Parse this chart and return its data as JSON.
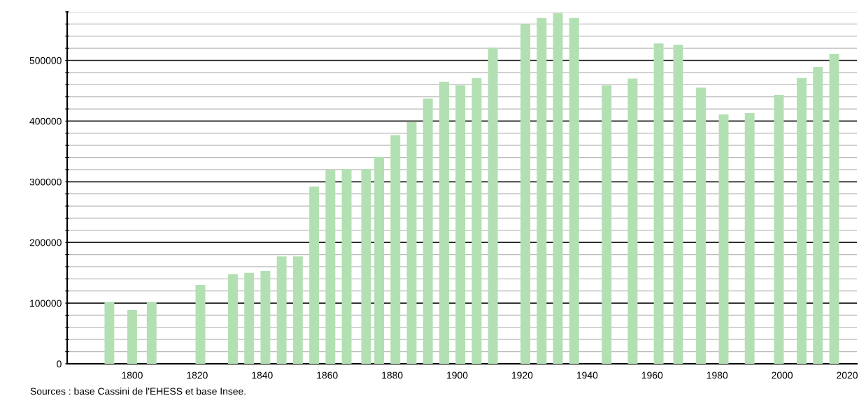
{
  "chart_data": {
    "type": "bar",
    "color": "#b3e0b3",
    "x": [
      1793,
      1800,
      1806,
      1821,
      1831,
      1836,
      1841,
      1846,
      1851,
      1856,
      1861,
      1866,
      1872,
      1876,
      1881,
      1886,
      1891,
      1896,
      1901,
      1906,
      1911,
      1921,
      1926,
      1931,
      1936,
      1946,
      1954,
      1962,
      1968,
      1975,
      1982,
      1990,
      1999,
      2006,
      2011,
      2016
    ],
    "values": [
      102000,
      88700,
      102000,
      130000,
      148000,
      150000,
      153000,
      177000,
      177000,
      292000,
      319500,
      321000,
      321000,
      341000,
      377000,
      398600,
      437000,
      465000,
      459000,
      471000,
      521000,
      560000,
      570000,
      578000,
      570000,
      459000,
      470000,
      528000,
      526000,
      455000,
      411000,
      413000,
      443000,
      471000,
      489000,
      511000
    ],
    "xlim": [
      1780,
      2023
    ],
    "xticks": [
      1800,
      1820,
      1840,
      1860,
      1880,
      1900,
      1920,
      1940,
      1960,
      1980,
      2000,
      2020
    ],
    "ylim": [
      0,
      580000
    ],
    "yticks": [
      0,
      {
        "value": 20000,
        "label": null
      },
      {
        "value": 40000,
        "label": null
      },
      {
        "value": 60000,
        "label": null
      },
      {
        "value": 80000,
        "label": null
      },
      100000,
      {
        "value": 120000,
        "label": null
      },
      {
        "value": 140000,
        "label": null
      },
      {
        "value": 160000,
        "label": null
      },
      {
        "value": 180000,
        "label": null
      },
      200000,
      {
        "value": 220000,
        "label": null
      },
      {
        "value": 240000,
        "label": null
      },
      {
        "value": 260000,
        "label": null
      },
      {
        "value": 280000,
        "label": null
      },
      300000,
      {
        "value": 320000,
        "label": null
      },
      {
        "value": 340000,
        "label": null
      },
      {
        "value": 360000,
        "label": null
      },
      {
        "value": 380000,
        "label": null
      },
      400000,
      {
        "value": 420000,
        "label": null
      },
      {
        "value": 440000,
        "label": null
      },
      {
        "value": 460000,
        "label": null
      },
      {
        "value": 480000,
        "label": null
      },
      500000,
      {
        "value": 520000,
        "label": null
      },
      {
        "value": 540000,
        "label": null
      },
      {
        "value": 560000,
        "label": null
      },
      {
        "value": 580000,
        "label": null
      }
    ],
    "grid": "y",
    "annotations": [
      "Sources : base Cassini de l'EHESS et base Insee."
    ]
  }
}
